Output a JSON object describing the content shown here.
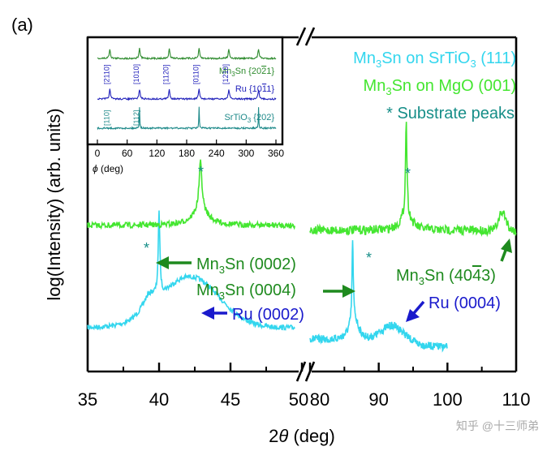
{
  "panel_label": "(a)",
  "chart_data": {
    "type": "line",
    "title": "",
    "xlabel_prefix": "2",
    "xlabel_symbol": "θ",
    "xlabel_suffix": " (deg)",
    "ylabel": "log(Intensity) (arb. units)",
    "x_ranges": [
      [
        35,
        50
      ],
      [
        80,
        110
      ]
    ],
    "x_ticks": [
      {
        "v": 35,
        "label": "35"
      },
      {
        "v": 40,
        "label": "40"
      },
      {
        "v": 45,
        "label": "45"
      },
      {
        "v": 50,
        "label": "50"
      },
      {
        "v": 80,
        "label": "80"
      },
      {
        "v": 90,
        "label": "90"
      },
      {
        "v": 100,
        "label": "100"
      },
      {
        "v": 110,
        "label": "110"
      }
    ],
    "axis_break": true,
    "series": [
      {
        "name": "Mn3Sn on SrTiO3 (111)",
        "color": "#33D6EE",
        "peaks": [
          {
            "x": 40.0,
            "label": "Mn3Sn (0002) substrate"
          },
          {
            "x": 42.0,
            "label": "Ru (0002)"
          },
          {
            "x": 86.2,
            "label": "Mn3Sn (0004) substrate"
          },
          {
            "x": 92.0,
            "label": "Ru (0004)"
          }
        ]
      },
      {
        "name": "Mn3Sn on MgO (001)",
        "color": "#44E630",
        "peaks": [
          {
            "x": 42.9,
            "label": "substrate"
          },
          {
            "x": 94.0,
            "label": "substrate"
          },
          {
            "x": 108.0,
            "label": "Mn3Sn (40-43)"
          }
        ]
      }
    ],
    "legend": [
      {
        "prefix": "Mn",
        "sub1": "3",
        "mid": "Sn on SrTiO",
        "sub2": "3",
        "suffix": " (111)",
        "color": "#33D6EE"
      },
      {
        "prefix": "Mn",
        "sub1": "3",
        "mid": "Sn on MgO (001)",
        "sub2": "",
        "suffix": "",
        "color": "#44E630"
      },
      {
        "prefix": "* Substrate peaks",
        "sub1": "",
        "mid": "",
        "sub2": "",
        "suffix": "",
        "color": "#168E88"
      }
    ],
    "annotations": [
      {
        "id": "a1",
        "pre": "Mn",
        "sub": "3",
        "post": "Sn (0002)",
        "color": "#1E8A1E"
      },
      {
        "id": "a2",
        "pre": "Mn",
        "sub": "3",
        "post": "Sn (0004)",
        "color": "#1E8A1E"
      },
      {
        "id": "a3",
        "pre": "Mn",
        "sub": "3",
        "post": "Sn (40",
        "over": "4",
        "post2": "3)",
        "color": "#1E8A1E"
      },
      {
        "id": "a4",
        "pre": "Ru (0002)",
        "sub": "",
        "post": "",
        "color": "#1A1ACC"
      },
      {
        "id": "a5",
        "pre": "Ru (0004)",
        "sub": "",
        "post": "",
        "color": "#1A1ACC"
      }
    ],
    "asterisk": "*",
    "inset": {
      "type": "line",
      "xlabel_symbol": "ϕ",
      "xlabel_suffix": " (deg)",
      "x_range": [
        0,
        360
      ],
      "x_ticks": [
        0,
        60,
        120,
        180,
        240,
        300,
        360
      ],
      "series": [
        {
          "name": "Mn3Sn {20-21}",
          "pre": "Mn",
          "sub": "3",
          "post": "Sn {20",
          "over": "2",
          "post2": "1}",
          "color": "#2E8B2E",
          "peaks": [
            25,
            85,
            145,
            205,
            265,
            325
          ]
        },
        {
          "name": "Ru {10-11}",
          "pre": "Ru {10",
          "over": "1",
          "post2": "1}",
          "color": "#2222BB",
          "peaks": [
            25,
            85,
            145,
            205,
            265,
            325
          ]
        },
        {
          "name": "SrTiO3 {202}",
          "pre": "SrTiO",
          "sub": "3",
          "post": " {202}",
          "color": "#1F8A8A",
          "peaks": [
            85,
            205,
            325
          ]
        }
      ],
      "direction_labels": {
        "top": [
          "[2110]",
          "[1010]",
          "[1120]",
          "[0110]",
          "[1210]"
        ],
        "bottom": [
          "[110]",
          "[112]"
        ]
      }
    }
  },
  "watermark": "知乎 @十三师弟"
}
